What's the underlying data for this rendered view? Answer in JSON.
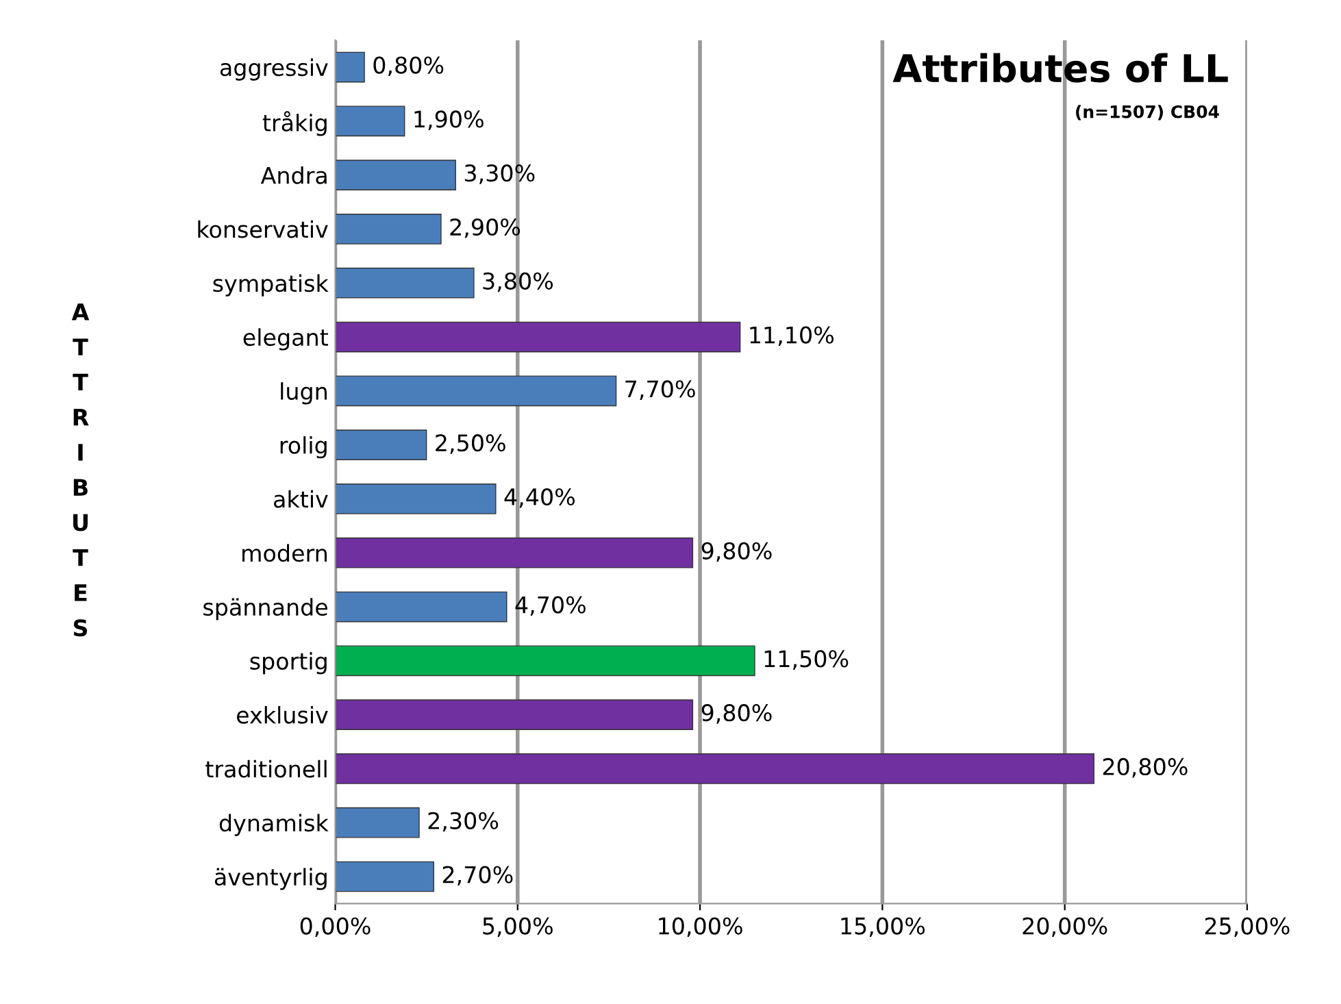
{
  "chart_data": {
    "type": "bar",
    "orientation": "horizontal",
    "title": "Attributes of LL",
    "subtitle": "(n=1507) CB04",
    "ylabel": "ATTRIBUTES",
    "categories": [
      "aggressiv",
      "tråkig",
      "Andra",
      "konservativ",
      "sympatisk",
      "elegant",
      "lugn",
      "rolig",
      "aktiv",
      "modern",
      "spännande",
      "sportig",
      "exklusiv",
      "traditionell",
      "dynamisk",
      "äventyrlig"
    ],
    "values": [
      0.8,
      1.9,
      3.3,
      2.9,
      3.8,
      11.1,
      7.7,
      2.5,
      4.4,
      9.8,
      4.7,
      11.5,
      9.8,
      20.8,
      2.3,
      2.7
    ],
    "colors": [
      "#4a7ebb",
      "#4a7ebb",
      "#4a7ebb",
      "#4a7ebb",
      "#4a7ebb",
      "#7030a0",
      "#4a7ebb",
      "#4a7ebb",
      "#4a7ebb",
      "#7030a0",
      "#4a7ebb",
      "#00b050",
      "#7030a0",
      "#7030a0",
      "#4a7ebb",
      "#4a7ebb"
    ],
    "value_labels": [
      "0,80%",
      "1,90%",
      "3,30%",
      "2,90%",
      "3,80%",
      "11,10%",
      "7,70%",
      "2,50%",
      "4,40%",
      "9,80%",
      "4,70%",
      "11,50%",
      "9,80%",
      "20,80%",
      "2,30%",
      "2,70%"
    ],
    "xlim": [
      0,
      25
    ],
    "xticks": [
      {
        "value": 0,
        "label": "0,00%"
      },
      {
        "value": 5,
        "label": "5,00%"
      },
      {
        "value": 10,
        "label": "10,00%"
      },
      {
        "value": 15,
        "label": "15,00%"
      },
      {
        "value": 20,
        "label": "20,00%"
      },
      {
        "value": 25,
        "label": "25,00%"
      }
    ],
    "grid": "x",
    "legend": false
  }
}
